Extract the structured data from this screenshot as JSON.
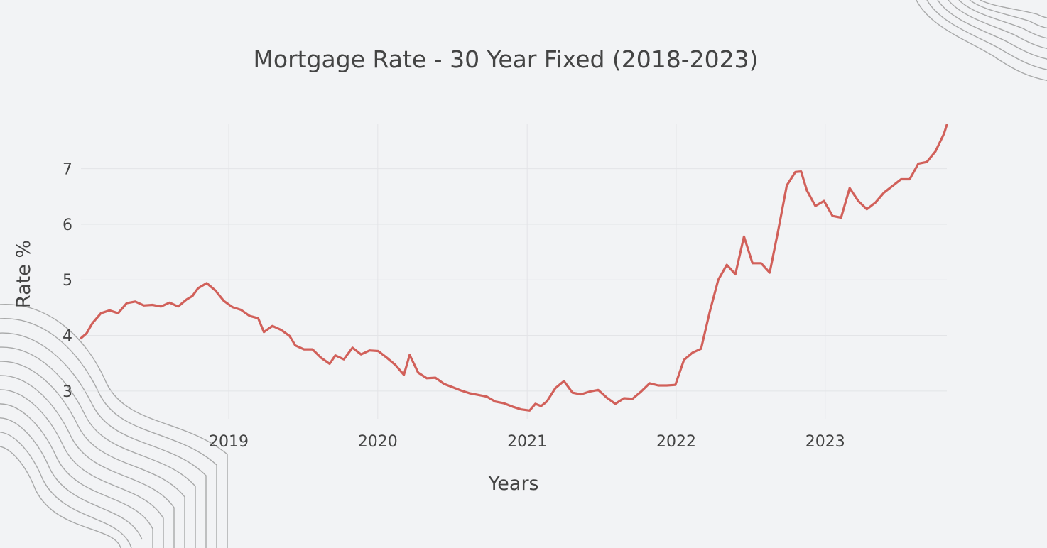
{
  "chart_data": {
    "type": "line",
    "title": "Mortgage Rate - 30 Year Fixed (2018-2023)",
    "xlabel": "Years",
    "ylabel": "Rate %",
    "x_ticks": [
      "2019",
      "2020",
      "2021",
      "2022",
      "2023"
    ],
    "y_ticks": [
      "3",
      "4",
      "5",
      "6",
      "7"
    ],
    "xlim": [
      "2018-01-04",
      "2023-10-26"
    ],
    "ylim": [
      2.5,
      7.8
    ],
    "grid": true,
    "series": [
      {
        "color": "#d1605a",
        "points": [
          [
            "2018-01-04",
            3.95
          ],
          [
            "2018-01-18",
            4.04
          ],
          [
            "2018-02-01",
            4.22
          ],
          [
            "2018-02-22",
            4.4
          ],
          [
            "2018-03-15",
            4.45
          ],
          [
            "2018-04-05",
            4.4
          ],
          [
            "2018-04-26",
            4.58
          ],
          [
            "2018-05-17",
            4.61
          ],
          [
            "2018-06-07",
            4.54
          ],
          [
            "2018-06-28",
            4.55
          ],
          [
            "2018-07-19",
            4.52
          ],
          [
            "2018-08-09",
            4.59
          ],
          [
            "2018-08-30",
            4.52
          ],
          [
            "2018-09-20",
            4.65
          ],
          [
            "2018-10-04",
            4.71
          ],
          [
            "2018-10-18",
            4.85
          ],
          [
            "2018-11-08",
            4.94
          ],
          [
            "2018-11-29",
            4.81
          ],
          [
            "2018-12-20",
            4.62
          ],
          [
            "2019-01-10",
            4.51
          ],
          [
            "2019-01-31",
            4.46
          ],
          [
            "2019-02-21",
            4.35
          ],
          [
            "2019-03-14",
            4.31
          ],
          [
            "2019-03-28",
            4.06
          ],
          [
            "2019-04-18",
            4.17
          ],
          [
            "2019-05-09",
            4.1
          ],
          [
            "2019-05-30",
            3.99
          ],
          [
            "2019-06-13",
            3.82
          ],
          [
            "2019-07-04",
            3.75
          ],
          [
            "2019-07-25",
            3.75
          ],
          [
            "2019-08-15",
            3.6
          ],
          [
            "2019-09-05",
            3.49
          ],
          [
            "2019-09-19",
            3.64
          ],
          [
            "2019-10-10",
            3.57
          ],
          [
            "2019-10-31",
            3.78
          ],
          [
            "2019-11-21",
            3.66
          ],
          [
            "2019-12-12",
            3.73
          ],
          [
            "2020-01-02",
            3.72
          ],
          [
            "2020-01-23",
            3.6
          ],
          [
            "2020-02-13",
            3.47
          ],
          [
            "2020-03-05",
            3.29
          ],
          [
            "2020-03-19",
            3.65
          ],
          [
            "2020-04-09",
            3.33
          ],
          [
            "2020-04-30",
            3.23
          ],
          [
            "2020-05-21",
            3.24
          ],
          [
            "2020-06-11",
            3.13
          ],
          [
            "2020-07-02",
            3.07
          ],
          [
            "2020-07-23",
            3.01
          ],
          [
            "2020-08-13",
            2.96
          ],
          [
            "2020-09-03",
            2.93
          ],
          [
            "2020-09-24",
            2.9
          ],
          [
            "2020-10-15",
            2.81
          ],
          [
            "2020-11-05",
            2.78
          ],
          [
            "2020-11-26",
            2.72
          ],
          [
            "2020-12-17",
            2.67
          ],
          [
            "2021-01-07",
            2.65
          ],
          [
            "2021-01-21",
            2.77
          ],
          [
            "2021-02-04",
            2.73
          ],
          [
            "2021-02-18",
            2.81
          ],
          [
            "2021-03-11",
            3.05
          ],
          [
            "2021-04-01",
            3.18
          ],
          [
            "2021-04-22",
            2.97
          ],
          [
            "2021-05-13",
            2.94
          ],
          [
            "2021-06-03",
            2.99
          ],
          [
            "2021-06-24",
            3.02
          ],
          [
            "2021-07-15",
            2.88
          ],
          [
            "2021-08-05",
            2.77
          ],
          [
            "2021-08-26",
            2.87
          ],
          [
            "2021-09-16",
            2.86
          ],
          [
            "2021-10-07",
            2.99
          ],
          [
            "2021-10-28",
            3.14
          ],
          [
            "2021-11-18",
            3.1
          ],
          [
            "2021-12-09",
            3.1
          ],
          [
            "2021-12-30",
            3.11
          ],
          [
            "2022-01-20",
            3.56
          ],
          [
            "2022-02-10",
            3.69
          ],
          [
            "2022-03-03",
            3.76
          ],
          [
            "2022-03-24",
            4.42
          ],
          [
            "2022-04-14",
            5.0
          ],
          [
            "2022-05-05",
            5.27
          ],
          [
            "2022-05-26",
            5.1
          ],
          [
            "2022-06-16",
            5.78
          ],
          [
            "2022-07-07",
            5.3
          ],
          [
            "2022-07-28",
            5.3
          ],
          [
            "2022-08-18",
            5.13
          ],
          [
            "2022-09-08",
            5.89
          ],
          [
            "2022-09-29",
            6.7
          ],
          [
            "2022-10-20",
            6.94
          ],
          [
            "2022-11-03",
            6.95
          ],
          [
            "2022-11-17",
            6.61
          ],
          [
            "2022-12-08",
            6.33
          ],
          [
            "2022-12-29",
            6.42
          ],
          [
            "2023-01-19",
            6.15
          ],
          [
            "2023-02-09",
            6.12
          ],
          [
            "2023-03-02",
            6.65
          ],
          [
            "2023-03-23",
            6.42
          ],
          [
            "2023-04-13",
            6.27
          ],
          [
            "2023-05-04",
            6.39
          ],
          [
            "2023-05-25",
            6.57
          ],
          [
            "2023-06-15",
            6.69
          ],
          [
            "2023-07-06",
            6.81
          ],
          [
            "2023-07-27",
            6.81
          ],
          [
            "2023-08-17",
            7.09
          ],
          [
            "2023-09-07",
            7.12
          ],
          [
            "2023-09-28",
            7.31
          ],
          [
            "2023-10-19",
            7.63
          ],
          [
            "2023-10-26",
            7.79
          ]
        ]
      }
    ]
  }
}
